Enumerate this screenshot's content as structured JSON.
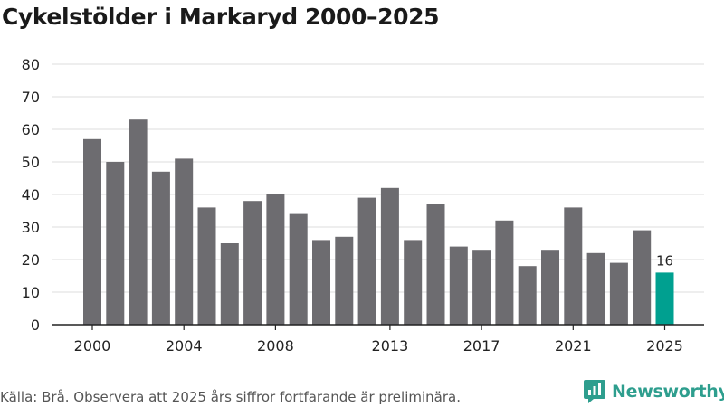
{
  "chart_data": {
    "type": "bar",
    "title": "Cykelstölder i Markaryd 2000–2025",
    "xlabel": "",
    "ylabel": "",
    "ylim": [
      0,
      80
    ],
    "yticks": [
      0,
      10,
      20,
      30,
      40,
      50,
      60,
      70,
      80
    ],
    "categories": [
      "2000",
      "2001",
      "2002",
      "2003",
      "2004",
      "2005",
      "2006",
      "2007",
      "2008",
      "2009",
      "2010",
      "2011",
      "2012",
      "2013",
      "2014",
      "2015",
      "2016",
      "2017",
      "2018",
      "2019",
      "2020",
      "2021",
      "2022",
      "2023",
      "2024",
      "2025"
    ],
    "xtick_labels": [
      "2000",
      "2004",
      "2008",
      "2013",
      "2017",
      "2021",
      "2025"
    ],
    "values": [
      57,
      50,
      63,
      47,
      51,
      36,
      25,
      38,
      40,
      34,
      26,
      27,
      39,
      42,
      26,
      37,
      24,
      23,
      32,
      18,
      23,
      36,
      22,
      19,
      29,
      16
    ],
    "highlight": {
      "category": "2025",
      "label": "16"
    },
    "grid": true
  },
  "colors": {
    "bar": "#6d6c70",
    "highlight": "#00a090",
    "grid": "#dddddd",
    "axis": "#222222",
    "brand": "#2e9e8e"
  },
  "footer": {
    "source": "Källa: Brå. Observera att 2025 års siffror fortfarande är preliminära.",
    "brand": "Newsworthy"
  }
}
